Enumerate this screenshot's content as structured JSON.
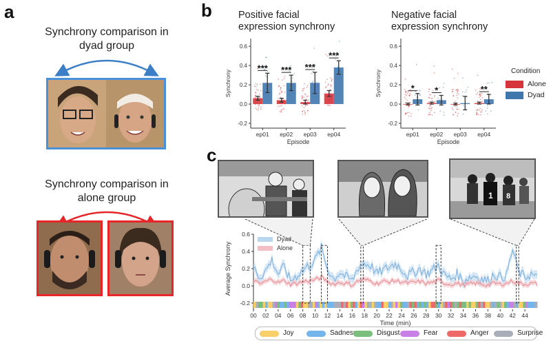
{
  "panels": {
    "a": {
      "letter": "a",
      "dyad_title": [
        "Synchrony comparison in",
        "dyad group"
      ],
      "alone_title": [
        "Synchrony comparison in",
        "alone group"
      ],
      "dyad_color": "#4a90d9",
      "alone_color": "#e8262a"
    },
    "b": {
      "letter": "b"
    },
    "c": {
      "letter": "c"
    }
  },
  "condition_legend": {
    "title": "Condition",
    "items": [
      {
        "label": "Alone",
        "color": "#d6353b"
      },
      {
        "label": "Dyad",
        "color": "#3f77ad"
      }
    ]
  },
  "emotion_legend": [
    {
      "label": "Joy",
      "color": "#f9cf6a"
    },
    {
      "label": "Sadness",
      "color": "#74b6ec"
    },
    {
      "label": "Disgust",
      "color": "#79be7c"
    },
    {
      "label": "Fear",
      "color": "#c880e6"
    },
    {
      "label": "Anger",
      "color": "#ee6a68"
    },
    {
      "label": "Surprise",
      "color": "#a9afb8"
    }
  ],
  "chart_data": [
    {
      "type": "bar",
      "title": "Positive facial expression synchrony",
      "title_lines": [
        "Positive facial",
        "expression synchrony"
      ],
      "xlabel": "Episode",
      "ylabel": "Synchrony",
      "categories": [
        "ep01",
        "ep02",
        "ep03",
        "ep04"
      ],
      "ylim": [
        -0.25,
        0.68
      ],
      "yticks": [
        "-0.2",
        "0.0",
        "0.2",
        "0.4",
        "0.6"
      ],
      "series": [
        {
          "name": "Alone",
          "values": [
            0.06,
            0.04,
            0.02,
            0.11
          ],
          "errors": [
            0.02,
            0.02,
            0.02,
            0.03
          ]
        },
        {
          "name": "Dyad",
          "values": [
            0.22,
            0.22,
            0.22,
            0.38
          ],
          "errors": [
            0.1,
            0.08,
            0.11,
            0.07
          ]
        }
      ],
      "significance": [
        "***",
        "***",
        "***",
        "***"
      ]
    },
    {
      "type": "bar",
      "title": "Negative facial expression synchrony",
      "title_lines": [
        "Negative facial",
        "expression synchrony"
      ],
      "xlabel": "Episode",
      "ylabel": "Synchrony",
      "categories": [
        "ep01",
        "ep02",
        "ep03",
        "ep04"
      ],
      "ylim": [
        -0.25,
        0.68
      ],
      "yticks": [
        "-0.2",
        "0.0",
        "0.2",
        "0.4",
        "0.6"
      ],
      "series": [
        {
          "name": "Alone",
          "values": [
            0.0,
            0.01,
            0.0,
            0.01
          ],
          "errors": [
            0.01,
            0.01,
            0.01,
            0.01
          ]
        },
        {
          "name": "Dyad",
          "values": [
            0.05,
            0.04,
            0.01,
            0.05
          ],
          "errors": [
            0.06,
            0.05,
            0.07,
            0.05
          ]
        }
      ],
      "significance": [
        "*",
        "*",
        "",
        "**"
      ]
    },
    {
      "type": "line",
      "xlabel": "Time (min)",
      "ylabel": "Average Synchrony",
      "xlim": [
        0,
        46
      ],
      "ylim": [
        -0.2,
        0.6
      ],
      "yticks": [
        "-0.2",
        "0.0",
        "0.2",
        "0.4",
        "0.6"
      ],
      "xticks": [
        "00",
        "02",
        "04",
        "06",
        "08",
        "10",
        "12",
        "14",
        "16",
        "18",
        "20",
        "22",
        "24",
        "26",
        "28",
        "30",
        "32",
        "34",
        "36",
        "38",
        "40",
        "42",
        "44"
      ],
      "series": [
        {
          "name": "Dyad",
          "x": [
            0,
            1,
            2,
            3,
            4,
            5,
            6,
            7,
            8,
            9,
            10,
            11,
            12,
            13,
            14,
            15,
            16,
            17,
            18,
            19,
            20,
            21,
            22,
            23,
            24,
            25,
            26,
            27,
            28,
            29,
            30,
            31,
            32,
            33,
            34,
            35,
            36,
            37,
            38,
            39,
            40,
            41,
            42,
            43,
            44,
            45,
            46
          ],
          "values": [
            0.22,
            0.1,
            0.18,
            0.3,
            0.14,
            0.22,
            0.06,
            0.12,
            0.18,
            0.24,
            0.3,
            0.44,
            0.2,
            0.08,
            0.16,
            0.1,
            0.06,
            0.22,
            0.26,
            0.24,
            0.14,
            0.18,
            0.22,
            0.26,
            0.2,
            0.12,
            0.16,
            0.2,
            0.14,
            0.18,
            0.24,
            0.12,
            0.08,
            0.14,
            0.06,
            0.1,
            0.12,
            0.08,
            0.06,
            0.14,
            0.1,
            0.12,
            0.42,
            0.16,
            0.1,
            0.14,
            0.08
          ]
        },
        {
          "name": "Alone",
          "x": [
            0,
            1,
            2,
            3,
            4,
            5,
            6,
            7,
            8,
            9,
            10,
            11,
            12,
            13,
            14,
            15,
            16,
            17,
            18,
            19,
            20,
            21,
            22,
            23,
            24,
            25,
            26,
            27,
            28,
            29,
            30,
            31,
            32,
            33,
            34,
            35,
            36,
            37,
            38,
            39,
            40,
            41,
            42,
            43,
            44,
            45,
            46
          ],
          "values": [
            0.06,
            0.02,
            0.05,
            0.08,
            0.04,
            0.06,
            0.02,
            0.03,
            0.05,
            0.06,
            0.07,
            0.1,
            0.05,
            0.02,
            0.04,
            0.03,
            0.01,
            0.06,
            0.07,
            0.06,
            0.03,
            0.05,
            0.05,
            0.06,
            0.05,
            0.03,
            0.04,
            0.05,
            0.03,
            0.04,
            0.06,
            0.03,
            0.02,
            0.03,
            0.01,
            0.02,
            0.03,
            0.02,
            0.01,
            0.03,
            0.02,
            0.03,
            0.06,
            0.03,
            0.02,
            0.03,
            0.02
          ]
        }
      ],
      "highlight_windows": [
        [
          8,
          9.2
        ],
        [
          11,
          12
        ],
        [
          17.4,
          17.8
        ],
        [
          29.6,
          30.4
        ],
        [
          42.6,
          43
        ]
      ]
    }
  ]
}
